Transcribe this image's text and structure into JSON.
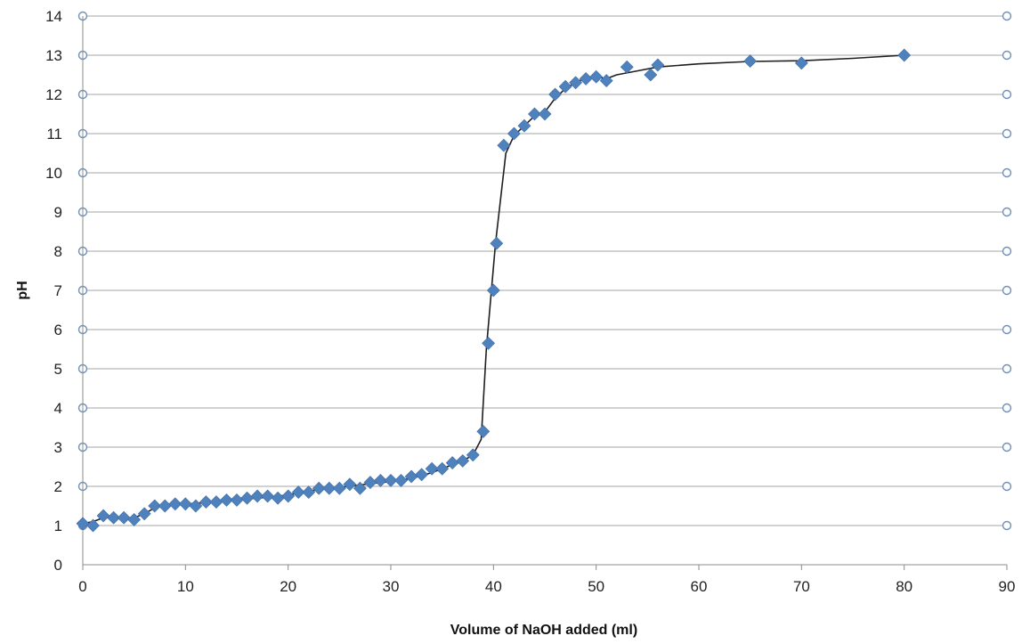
{
  "chart_data": {
    "type": "scatter",
    "title": "",
    "xlabel": "Volume of NaOH added (ml)",
    "ylabel": "pH",
    "xlim": [
      0,
      90
    ],
    "ylim": [
      0,
      14
    ],
    "xticks": [
      0,
      10,
      20,
      30,
      40,
      50,
      60,
      70,
      80,
      90
    ],
    "yticks": [
      0,
      1,
      2,
      3,
      4,
      5,
      6,
      7,
      8,
      9,
      10,
      11,
      12,
      13,
      14
    ],
    "grid": "horizontal",
    "legend": "none",
    "marker_color": "#4F81BD",
    "line_color": "#1F1F1F",
    "grid_color": "#A6A6A6",
    "axis_marker_color": "#6E8FB8",
    "series": [
      {
        "marker": "diamond",
        "points": [
          [
            0,
            1.05
          ],
          [
            1,
            1.0
          ],
          [
            2,
            1.25
          ],
          [
            3,
            1.2
          ],
          [
            4,
            1.2
          ],
          [
            5,
            1.15
          ],
          [
            6,
            1.3
          ],
          [
            7,
            1.5
          ],
          [
            8,
            1.5
          ],
          [
            9,
            1.55
          ],
          [
            10,
            1.55
          ],
          [
            11,
            1.5
          ],
          [
            12,
            1.6
          ],
          [
            13,
            1.6
          ],
          [
            14,
            1.65
          ],
          [
            15,
            1.65
          ],
          [
            16,
            1.7
          ],
          [
            17,
            1.75
          ],
          [
            18,
            1.75
          ],
          [
            19,
            1.7
          ],
          [
            20,
            1.75
          ],
          [
            21,
            1.85
          ],
          [
            22,
            1.85
          ],
          [
            23,
            1.95
          ],
          [
            24,
            1.95
          ],
          [
            25,
            1.95
          ],
          [
            26,
            2.05
          ],
          [
            27,
            1.95
          ],
          [
            28,
            2.1
          ],
          [
            29,
            2.15
          ],
          [
            30,
            2.15
          ],
          [
            31,
            2.15
          ],
          [
            32,
            2.25
          ],
          [
            33,
            2.3
          ],
          [
            34,
            2.45
          ],
          [
            35,
            2.45
          ],
          [
            36,
            2.6
          ],
          [
            37,
            2.65
          ],
          [
            38,
            2.8
          ],
          [
            39,
            3.4
          ],
          [
            39.5,
            5.65
          ],
          [
            40,
            7.0
          ],
          [
            40.3,
            8.2
          ],
          [
            41,
            10.7
          ],
          [
            42,
            11.0
          ],
          [
            43,
            11.2
          ],
          [
            44,
            11.5
          ],
          [
            45,
            11.5
          ],
          [
            46,
            12.0
          ],
          [
            47,
            12.2
          ],
          [
            48,
            12.3
          ],
          [
            49,
            12.4
          ],
          [
            50,
            12.45
          ],
          [
            51,
            12.35
          ],
          [
            53,
            12.7
          ],
          [
            55.3,
            12.5
          ],
          [
            56,
            12.75
          ],
          [
            65,
            12.85
          ],
          [
            70,
            12.8
          ],
          [
            80,
            13.0
          ]
        ]
      }
    ],
    "trend_line": [
      [
        0,
        1.05
      ],
      [
        1,
        1.1
      ],
      [
        2,
        1.2
      ],
      [
        3,
        1.2
      ],
      [
        4,
        1.2
      ],
      [
        5,
        1.2
      ],
      [
        6,
        1.3
      ],
      [
        7,
        1.45
      ],
      [
        8,
        1.55
      ],
      [
        10,
        1.55
      ],
      [
        12,
        1.58
      ],
      [
        14,
        1.62
      ],
      [
        16,
        1.68
      ],
      [
        18,
        1.72
      ],
      [
        20,
        1.78
      ],
      [
        22,
        1.88
      ],
      [
        24,
        1.95
      ],
      [
        26,
        2.0
      ],
      [
        28,
        2.07
      ],
      [
        30,
        2.12
      ],
      [
        32,
        2.2
      ],
      [
        34,
        2.35
      ],
      [
        36,
        2.55
      ],
      [
        37,
        2.65
      ],
      [
        38,
        2.8
      ],
      [
        38.8,
        3.2
      ],
      [
        39.3,
        5.5
      ],
      [
        39.8,
        7.0
      ],
      [
        40.2,
        8.2
      ],
      [
        41.2,
        10.5
      ],
      [
        42,
        10.95
      ],
      [
        43,
        11.2
      ],
      [
        44,
        11.45
      ],
      [
        45,
        11.55
      ],
      [
        46,
        11.9
      ],
      [
        47,
        12.15
      ],
      [
        48,
        12.3
      ],
      [
        49,
        12.42
      ],
      [
        50,
        12.45
      ],
      [
        51,
        12.4
      ],
      [
        52,
        12.5
      ],
      [
        54,
        12.6
      ],
      [
        56,
        12.7
      ],
      [
        60,
        12.78
      ],
      [
        65,
        12.84
      ],
      [
        70,
        12.86
      ],
      [
        75,
        12.92
      ],
      [
        80,
        13.0
      ]
    ]
  }
}
